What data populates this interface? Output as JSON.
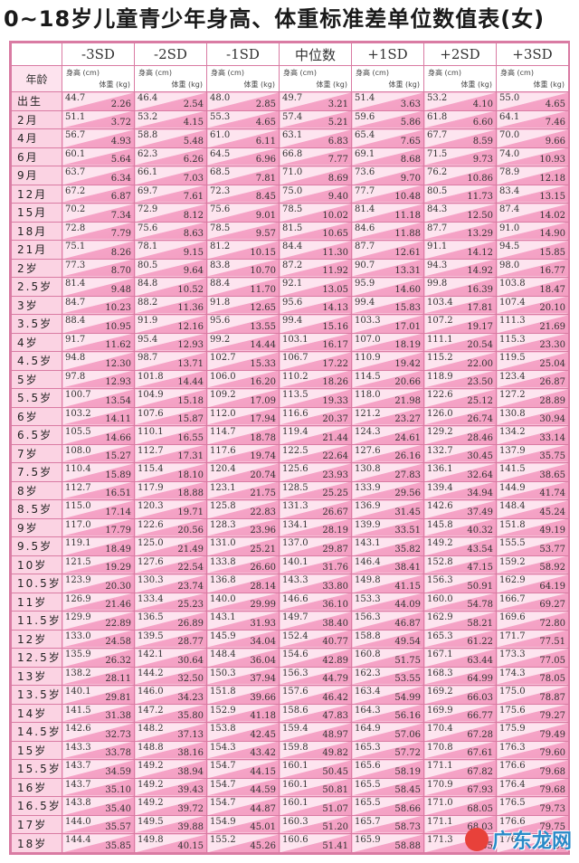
{
  "title": "0~18岁儿童青少年身高、体重标准差单位数值表(女)",
  "corner_label": "年龄",
  "columns": [
    "-3SD",
    "-2SD",
    "-1SD",
    "中位数",
    "+1SD",
    "+2SD",
    "+3SD"
  ],
  "unit_height": "身高 (cm)",
  "unit_weight": "体重 (kg)",
  "rows": [
    {
      "age": "出生",
      "cells": [
        [
          "44.7",
          "2.26"
        ],
        [
          "46.4",
          "2.54"
        ],
        [
          "48.0",
          "2.85"
        ],
        [
          "49.7",
          "3.21"
        ],
        [
          "51.4",
          "3.63"
        ],
        [
          "53.2",
          "4.10"
        ],
        [
          "55.0",
          "4.65"
        ]
      ]
    },
    {
      "age": "2月",
      "cells": [
        [
          "51.1",
          "3.72"
        ],
        [
          "53.2",
          "4.15"
        ],
        [
          "55.3",
          "4.65"
        ],
        [
          "57.4",
          "5.21"
        ],
        [
          "59.6",
          "5.86"
        ],
        [
          "61.8",
          "6.60"
        ],
        [
          "64.1",
          "7.46"
        ]
      ]
    },
    {
      "age": "4月",
      "cells": [
        [
          "56.7",
          "4.93"
        ],
        [
          "58.8",
          "5.48"
        ],
        [
          "61.0",
          "6.11"
        ],
        [
          "63.1",
          "6.83"
        ],
        [
          "65.4",
          "7.65"
        ],
        [
          "67.7",
          "8.59"
        ],
        [
          "70.0",
          "9.66"
        ]
      ]
    },
    {
      "age": "6月",
      "cells": [
        [
          "60.1",
          "5.64"
        ],
        [
          "62.3",
          "6.26"
        ],
        [
          "64.5",
          "6.96"
        ],
        [
          "66.8",
          "7.77"
        ],
        [
          "69.1",
          "8.68"
        ],
        [
          "71.5",
          "9.73"
        ],
        [
          "74.0",
          "10.93"
        ]
      ]
    },
    {
      "age": "9月",
      "cells": [
        [
          "63.7",
          "6.34"
        ],
        [
          "66.1",
          "7.03"
        ],
        [
          "68.5",
          "7.81"
        ],
        [
          "71.0",
          "8.69"
        ],
        [
          "73.6",
          "9.70"
        ],
        [
          "76.2",
          "10.86"
        ],
        [
          "78.9",
          "12.18"
        ]
      ]
    },
    {
      "age": "12月",
      "cells": [
        [
          "67.2",
          "6.87"
        ],
        [
          "69.7",
          "7.61"
        ],
        [
          "72.3",
          "8.45"
        ],
        [
          "75.0",
          "9.40"
        ],
        [
          "77.7",
          "10.48"
        ],
        [
          "80.5",
          "11.73"
        ],
        [
          "83.4",
          "13.15"
        ]
      ]
    },
    {
      "age": "15月",
      "cells": [
        [
          "70.2",
          "7.34"
        ],
        [
          "72.9",
          "8.12"
        ],
        [
          "75.6",
          "9.01"
        ],
        [
          "78.5",
          "10.02"
        ],
        [
          "81.4",
          "11.18"
        ],
        [
          "84.3",
          "12.50"
        ],
        [
          "87.4",
          "14.02"
        ]
      ]
    },
    {
      "age": "18月",
      "cells": [
        [
          "72.8",
          "7.79"
        ],
        [
          "75.6",
          "8.63"
        ],
        [
          "78.5",
          "9.57"
        ],
        [
          "81.5",
          "10.65"
        ],
        [
          "84.6",
          "11.88"
        ],
        [
          "87.7",
          "13.29"
        ],
        [
          "91.0",
          "14.90"
        ]
      ]
    },
    {
      "age": "21月",
      "cells": [
        [
          "75.1",
          "8.26"
        ],
        [
          "78.1",
          "9.15"
        ],
        [
          "81.2",
          "10.15"
        ],
        [
          "84.4",
          "11.30"
        ],
        [
          "87.7",
          "12.61"
        ],
        [
          "91.1",
          "14.12"
        ],
        [
          "94.5",
          "15.85"
        ]
      ]
    },
    {
      "age": "2岁",
      "cells": [
        [
          "77.3",
          "8.70"
        ],
        [
          "80.5",
          "9.64"
        ],
        [
          "83.8",
          "10.70"
        ],
        [
          "87.2",
          "11.92"
        ],
        [
          "90.7",
          "13.31"
        ],
        [
          "94.3",
          "14.92"
        ],
        [
          "98.0",
          "16.77"
        ]
      ]
    },
    {
      "age": "2.5岁",
      "cells": [
        [
          "81.4",
          "9.48"
        ],
        [
          "84.8",
          "10.52"
        ],
        [
          "88.4",
          "11.70"
        ],
        [
          "92.1",
          "13.05"
        ],
        [
          "95.9",
          "14.60"
        ],
        [
          "99.8",
          "16.39"
        ],
        [
          "103.8",
          "18.47"
        ]
      ]
    },
    {
      "age": "3岁",
      "cells": [
        [
          "84.7",
          "10.23"
        ],
        [
          "88.2",
          "11.36"
        ],
        [
          "91.8",
          "12.65"
        ],
        [
          "95.6",
          "14.13"
        ],
        [
          "99.4",
          "15.83"
        ],
        [
          "103.4",
          "17.81"
        ],
        [
          "107.4",
          "20.10"
        ]
      ]
    },
    {
      "age": "3.5岁",
      "cells": [
        [
          "88.4",
          "10.95"
        ],
        [
          "91.9",
          "12.16"
        ],
        [
          "95.6",
          "13.55"
        ],
        [
          "99.4",
          "15.16"
        ],
        [
          "103.3",
          "17.01"
        ],
        [
          "107.2",
          "19.17"
        ],
        [
          "111.3",
          "21.69"
        ]
      ]
    },
    {
      "age": "4岁",
      "cells": [
        [
          "91.7",
          "11.62"
        ],
        [
          "95.4",
          "12.93"
        ],
        [
          "99.2",
          "14.44"
        ],
        [
          "103.1",
          "16.17"
        ],
        [
          "107.0",
          "18.19"
        ],
        [
          "111.1",
          "20.54"
        ],
        [
          "115.3",
          "23.30"
        ]
      ]
    },
    {
      "age": "4.5岁",
      "cells": [
        [
          "94.8",
          "12.30"
        ],
        [
          "98.7",
          "13.71"
        ],
        [
          "102.7",
          "15.33"
        ],
        [
          "106.7",
          "17.22"
        ],
        [
          "110.9",
          "19.42"
        ],
        [
          "115.2",
          "22.00"
        ],
        [
          "119.5",
          "25.04"
        ]
      ]
    },
    {
      "age": "5岁",
      "cells": [
        [
          "97.8",
          "12.93"
        ],
        [
          "101.8",
          "14.44"
        ],
        [
          "106.0",
          "16.20"
        ],
        [
          "110.2",
          "18.26"
        ],
        [
          "114.5",
          "20.66"
        ],
        [
          "118.9",
          "23.50"
        ],
        [
          "123.4",
          "26.87"
        ]
      ]
    },
    {
      "age": "5.5岁",
      "cells": [
        [
          "100.7",
          "13.54"
        ],
        [
          "104.9",
          "15.18"
        ],
        [
          "109.2",
          "17.09"
        ],
        [
          "113.5",
          "19.33"
        ],
        [
          "118.0",
          "21.98"
        ],
        [
          "122.6",
          "25.12"
        ],
        [
          "127.2",
          "28.89"
        ]
      ]
    },
    {
      "age": "6岁",
      "cells": [
        [
          "103.2",
          "14.11"
        ],
        [
          "107.6",
          "15.87"
        ],
        [
          "112.0",
          "17.94"
        ],
        [
          "116.6",
          "20.37"
        ],
        [
          "121.2",
          "23.27"
        ],
        [
          "126.0",
          "26.74"
        ],
        [
          "130.8",
          "30.94"
        ]
      ]
    },
    {
      "age": "6.5岁",
      "cells": [
        [
          "105.5",
          "14.66"
        ],
        [
          "110.1",
          "16.55"
        ],
        [
          "114.7",
          "18.78"
        ],
        [
          "119.4",
          "21.44"
        ],
        [
          "124.3",
          "24.61"
        ],
        [
          "129.2",
          "28.46"
        ],
        [
          "134.2",
          "33.14"
        ]
      ]
    },
    {
      "age": "7岁",
      "cells": [
        [
          "108.0",
          "15.27"
        ],
        [
          "112.7",
          "17.31"
        ],
        [
          "117.6",
          "19.74"
        ],
        [
          "122.5",
          "22.64"
        ],
        [
          "127.6",
          "26.16"
        ],
        [
          "132.7",
          "30.45"
        ],
        [
          "137.9",
          "35.75"
        ]
      ]
    },
    {
      "age": "7.5岁",
      "cells": [
        [
          "110.4",
          "15.89"
        ],
        [
          "115.4",
          "18.10"
        ],
        [
          "120.4",
          "20.74"
        ],
        [
          "125.6",
          "23.93"
        ],
        [
          "130.8",
          "27.83"
        ],
        [
          "136.1",
          "32.64"
        ],
        [
          "141.5",
          "38.65"
        ]
      ]
    },
    {
      "age": "8岁",
      "cells": [
        [
          "112.7",
          "16.51"
        ],
        [
          "117.9",
          "18.88"
        ],
        [
          "123.1",
          "21.75"
        ],
        [
          "128.5",
          "25.25"
        ],
        [
          "133.9",
          "29.56"
        ],
        [
          "139.4",
          "34.94"
        ],
        [
          "144.9",
          "41.74"
        ]
      ]
    },
    {
      "age": "8.5岁",
      "cells": [
        [
          "115.0",
          "17.14"
        ],
        [
          "120.3",
          "19.71"
        ],
        [
          "125.8",
          "22.83"
        ],
        [
          "131.3",
          "26.67"
        ],
        [
          "136.9",
          "31.45"
        ],
        [
          "142.6",
          "37.49"
        ],
        [
          "148.4",
          "45.24"
        ]
      ]
    },
    {
      "age": "9岁",
      "cells": [
        [
          "117.0",
          "17.79"
        ],
        [
          "122.6",
          "20.56"
        ],
        [
          "128.3",
          "23.96"
        ],
        [
          "134.1",
          "28.19"
        ],
        [
          "139.9",
          "33.51"
        ],
        [
          "145.8",
          "40.32"
        ],
        [
          "151.8",
          "49.19"
        ]
      ]
    },
    {
      "age": "9.5岁",
      "cells": [
        [
          "119.1",
          "18.49"
        ],
        [
          "125.0",
          "21.49"
        ],
        [
          "131.0",
          "25.21"
        ],
        [
          "137.0",
          "29.87"
        ],
        [
          "143.1",
          "35.82"
        ],
        [
          "149.2",
          "43.54"
        ],
        [
          "155.5",
          "53.77"
        ]
      ]
    },
    {
      "age": "10岁",
      "cells": [
        [
          "121.5",
          "19.29"
        ],
        [
          "127.6",
          "22.54"
        ],
        [
          "133.8",
          "26.60"
        ],
        [
          "140.1",
          "31.76"
        ],
        [
          "146.4",
          "38.41"
        ],
        [
          "152.8",
          "47.15"
        ],
        [
          "159.2",
          "58.92"
        ]
      ]
    },
    {
      "age": "10.5岁",
      "cells": [
        [
          "123.9",
          "20.30"
        ],
        [
          "130.3",
          "23.74"
        ],
        [
          "136.8",
          "28.14"
        ],
        [
          "143.3",
          "33.80"
        ],
        [
          "149.8",
          "41.15"
        ],
        [
          "156.3",
          "50.91"
        ],
        [
          "162.9",
          "64.19"
        ]
      ]
    },
    {
      "age": "11岁",
      "cells": [
        [
          "126.9",
          "21.46"
        ],
        [
          "133.4",
          "25.23"
        ],
        [
          "140.0",
          "29.99"
        ],
        [
          "146.6",
          "36.10"
        ],
        [
          "153.3",
          "44.09"
        ],
        [
          "160.0",
          "54.78"
        ],
        [
          "166.7",
          "69.27"
        ]
      ]
    },
    {
      "age": "11.5岁",
      "cells": [
        [
          "129.9",
          "22.89"
        ],
        [
          "136.5",
          "26.89"
        ],
        [
          "143.1",
          "31.93"
        ],
        [
          "149.7",
          "38.40"
        ],
        [
          "156.3",
          "46.87"
        ],
        [
          "162.9",
          "58.21"
        ],
        [
          "169.6",
          "72.80"
        ]
      ]
    },
    {
      "age": "12岁",
      "cells": [
        [
          "133.0",
          "24.58"
        ],
        [
          "139.5",
          "28.77"
        ],
        [
          "145.9",
          "34.04"
        ],
        [
          "152.4",
          "40.77"
        ],
        [
          "158.8",
          "49.54"
        ],
        [
          "165.3",
          "61.22"
        ],
        [
          "171.7",
          "77.51"
        ]
      ]
    },
    {
      "age": "12.5岁",
      "cells": [
        [
          "135.9",
          "26.32"
        ],
        [
          "142.1",
          "30.64"
        ],
        [
          "148.4",
          "36.04"
        ],
        [
          "154.6",
          "42.89"
        ],
        [
          "160.8",
          "51.75"
        ],
        [
          "167.1",
          "63.44"
        ],
        [
          "173.3",
          "77.05"
        ]
      ]
    },
    {
      "age": "13岁",
      "cells": [
        [
          "138.2",
          "28.11"
        ],
        [
          "144.2",
          "32.50"
        ],
        [
          "150.3",
          "37.94"
        ],
        [
          "156.3",
          "44.79"
        ],
        [
          "162.3",
          "53.55"
        ],
        [
          "168.3",
          "64.99"
        ],
        [
          "174.3",
          "78.05"
        ]
      ]
    },
    {
      "age": "13.5岁",
      "cells": [
        [
          "140.1",
          "29.81"
        ],
        [
          "146.0",
          "34.23"
        ],
        [
          "151.8",
          "39.66"
        ],
        [
          "157.6",
          "46.42"
        ],
        [
          "163.4",
          "54.99"
        ],
        [
          "169.2",
          "66.03"
        ],
        [
          "175.0",
          "78.87"
        ]
      ]
    },
    {
      "age": "14岁",
      "cells": [
        [
          "141.5",
          "31.38"
        ],
        [
          "147.2",
          "35.80"
        ],
        [
          "152.9",
          "41.18"
        ],
        [
          "158.6",
          "47.83"
        ],
        [
          "164.3",
          "56.16"
        ],
        [
          "169.9",
          "66.77"
        ],
        [
          "175.6",
          "79.27"
        ]
      ]
    },
    {
      "age": "14.5岁",
      "cells": [
        [
          "142.6",
          "32.73"
        ],
        [
          "148.2",
          "37.13"
        ],
        [
          "153.8",
          "42.45"
        ],
        [
          "159.4",
          "48.97"
        ],
        [
          "164.9",
          "57.06"
        ],
        [
          "170.4",
          "67.28"
        ],
        [
          "175.9",
          "79.49"
        ]
      ]
    },
    {
      "age": "15岁",
      "cells": [
        [
          "143.3",
          "33.78"
        ],
        [
          "148.8",
          "38.16"
        ],
        [
          "154.3",
          "43.42"
        ],
        [
          "159.8",
          "49.82"
        ],
        [
          "165.3",
          "57.72"
        ],
        [
          "170.8",
          "67.61"
        ],
        [
          "176.3",
          "79.60"
        ]
      ]
    },
    {
      "age": "15.5岁",
      "cells": [
        [
          "143.7",
          "34.59"
        ],
        [
          "149.2",
          "38.94"
        ],
        [
          "154.7",
          "44.15"
        ],
        [
          "160.1",
          "50.45"
        ],
        [
          "165.6",
          "58.19"
        ],
        [
          "171.1",
          "67.82"
        ],
        [
          "176.6",
          "79.68"
        ]
      ]
    },
    {
      "age": "16岁",
      "cells": [
        [
          "143.7",
          "35.10"
        ],
        [
          "149.2",
          "39.43"
        ],
        [
          "154.7",
          "44.59"
        ],
        [
          "160.1",
          "50.81"
        ],
        [
          "165.5",
          "58.45"
        ],
        [
          "170.9",
          "67.93"
        ],
        [
          "176.4",
          "79.68"
        ]
      ]
    },
    {
      "age": "16.5岁",
      "cells": [
        [
          "143.8",
          "35.40"
        ],
        [
          "149.2",
          "39.72"
        ],
        [
          "154.7",
          "44.87"
        ],
        [
          "160.1",
          "51.07"
        ],
        [
          "165.5",
          "58.66"
        ],
        [
          "171.0",
          "68.05"
        ],
        [
          "176.5",
          "79.73"
        ]
      ]
    },
    {
      "age": "17岁",
      "cells": [
        [
          "144.0",
          "35.57"
        ],
        [
          "149.5",
          "39.88"
        ],
        [
          "154.9",
          "45.01"
        ],
        [
          "160.3",
          "51.20"
        ],
        [
          "165.7",
          "58.73"
        ],
        [
          "171.1",
          "68.03"
        ],
        [
          "176.6",
          "79.75"
        ]
      ]
    },
    {
      "age": "18岁",
      "cells": [
        [
          "144.4",
          "35.85"
        ],
        [
          "149.8",
          "40.15"
        ],
        [
          "155.2",
          "45.26"
        ],
        [
          "160.6",
          "51.41"
        ],
        [
          "165.9",
          "58.88"
        ],
        [
          "171.3",
          "68.05"
        ],
        [
          "176.8",
          "79.81"
        ]
      ]
    }
  ],
  "watermark": "广东龙网"
}
